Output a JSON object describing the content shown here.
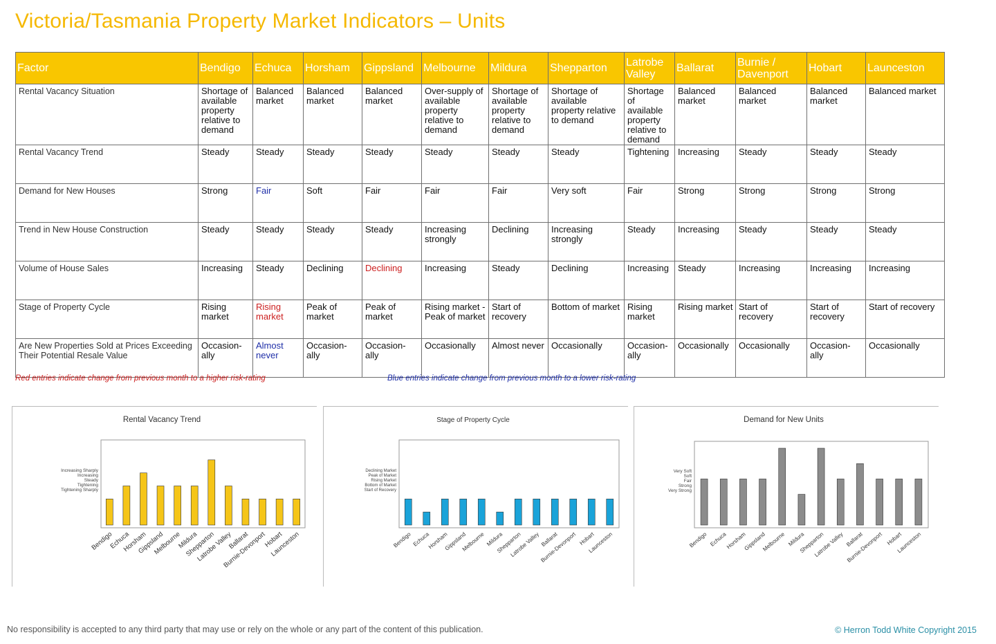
{
  "page": {
    "title": "Victoria/Tasmania Property Market Indicators – Units"
  },
  "table": {
    "header": [
      "Factor",
      "Bendigo",
      "Echuca",
      "Horsham",
      "Gippsland",
      "Melbourne",
      "Mildura",
      "Shepparton",
      "Latrobe Valley",
      "Ballarat",
      "Burnie / Davenport",
      "Hobart",
      "Launceston"
    ],
    "rows": [
      {
        "factor": "Rental Vacancy Situation",
        "cells": [
          {
            "text": "Shortage of available property relative to demand",
            "color": ""
          },
          {
            "text": "Balanced market",
            "color": ""
          },
          {
            "text": "Balanced market",
            "color": ""
          },
          {
            "text": "Balanced market",
            "color": ""
          },
          {
            "text": "Over-supply of available property relative to demand",
            "color": ""
          },
          {
            "text": "Shortage of available property relative to demand",
            "color": ""
          },
          {
            "text": "Shortage of available property relative to demand",
            "color": ""
          },
          {
            "text": "Shortage of available property relative to demand",
            "color": ""
          },
          {
            "text": "Balanced market",
            "color": ""
          },
          {
            "text": "Balanced market",
            "color": ""
          },
          {
            "text": "Balanced market",
            "color": ""
          },
          {
            "text": "Balanced market",
            "color": ""
          }
        ]
      },
      {
        "factor": "Rental Vacancy Trend",
        "cells": [
          {
            "text": "Steady",
            "color": ""
          },
          {
            "text": "Steady",
            "color": ""
          },
          {
            "text": "Steady",
            "color": ""
          },
          {
            "text": "Steady",
            "color": ""
          },
          {
            "text": "Steady",
            "color": ""
          },
          {
            "text": "Steady",
            "color": ""
          },
          {
            "text": "Steady",
            "color": ""
          },
          {
            "text": "Tightening",
            "color": ""
          },
          {
            "text": "Increasing",
            "color": ""
          },
          {
            "text": "Steady",
            "color": ""
          },
          {
            "text": "Steady",
            "color": ""
          },
          {
            "text": "Steady",
            "color": ""
          }
        ]
      },
      {
        "factor": "Demand for New Houses",
        "cells": [
          {
            "text": "Strong",
            "color": ""
          },
          {
            "text": "Fair",
            "color": "blue"
          },
          {
            "text": "Soft",
            "color": ""
          },
          {
            "text": "Fair",
            "color": ""
          },
          {
            "text": "Fair",
            "color": ""
          },
          {
            "text": "Fair",
            "color": ""
          },
          {
            "text": "Very soft",
            "color": ""
          },
          {
            "text": "Fair",
            "color": ""
          },
          {
            "text": "Strong",
            "color": ""
          },
          {
            "text": "Strong",
            "color": ""
          },
          {
            "text": "Strong",
            "color": ""
          },
          {
            "text": "Strong",
            "color": ""
          }
        ]
      },
      {
        "factor": "Trend in New House Construction",
        "cells": [
          {
            "text": "Steady",
            "color": ""
          },
          {
            "text": "Steady",
            "color": ""
          },
          {
            "text": "Steady",
            "color": ""
          },
          {
            "text": "Steady",
            "color": ""
          },
          {
            "text": "Increasing strongly",
            "color": ""
          },
          {
            "text": "Declining",
            "color": ""
          },
          {
            "text": "Increasing strongly",
            "color": ""
          },
          {
            "text": "Steady",
            "color": ""
          },
          {
            "text": "Increasing",
            "color": ""
          },
          {
            "text": "Steady",
            "color": ""
          },
          {
            "text": "Steady",
            "color": ""
          },
          {
            "text": "Steady",
            "color": ""
          }
        ]
      },
      {
        "factor": "Volume of House Sales",
        "cells": [
          {
            "text": "Increasing",
            "color": ""
          },
          {
            "text": "Steady",
            "color": ""
          },
          {
            "text": "Declining",
            "color": ""
          },
          {
            "text": "Declining",
            "color": "red"
          },
          {
            "text": "Increasing",
            "color": ""
          },
          {
            "text": "Steady",
            "color": ""
          },
          {
            "text": "Declining",
            "color": ""
          },
          {
            "text": "Increasing",
            "color": ""
          },
          {
            "text": "Steady",
            "color": ""
          },
          {
            "text": "Increasing",
            "color": ""
          },
          {
            "text": "Increasing",
            "color": ""
          },
          {
            "text": "Increasing",
            "color": ""
          }
        ]
      },
      {
        "factor": "Stage of Property Cycle",
        "cells": [
          {
            "text": "Rising market",
            "color": ""
          },
          {
            "text": "Rising market",
            "color": "red"
          },
          {
            "text": "Peak of market",
            "color": ""
          },
          {
            "text": "Peak of market",
            "color": ""
          },
          {
            "text": "Rising market - Peak of market",
            "color": ""
          },
          {
            "text": "Start of recovery",
            "color": ""
          },
          {
            "text": "Bottom of market",
            "color": ""
          },
          {
            "text": "Rising market",
            "color": ""
          },
          {
            "text": "Rising market",
            "color": ""
          },
          {
            "text": "Start of recovery",
            "color": ""
          },
          {
            "text": "Start of recovery",
            "color": ""
          },
          {
            "text": "Start of recovery",
            "color": ""
          }
        ]
      },
      {
        "factor": "Are New Properties Sold at Prices Exceeding Their Potential Resale Value",
        "cells": [
          {
            "text": "Occasion-ally",
            "color": ""
          },
          {
            "text": "Almost never",
            "color": "blue"
          },
          {
            "text": "Occasion-ally",
            "color": ""
          },
          {
            "text": "Occasion-ally",
            "color": ""
          },
          {
            "text": "Occasionally",
            "color": ""
          },
          {
            "text": "Almost never",
            "color": ""
          },
          {
            "text": "Occasionally",
            "color": ""
          },
          {
            "text": "Occasion-ally",
            "color": ""
          },
          {
            "text": "Occasionally",
            "color": ""
          },
          {
            "text": "Occasionally",
            "color": ""
          },
          {
            "text": "Occasion-ally",
            "color": ""
          },
          {
            "text": "Occasionally",
            "color": ""
          }
        ]
      }
    ]
  },
  "notes": {
    "red": "Red entries indicate change from previous month to a higher risk-rating",
    "blue": "Blue entries indicate change from previous month to a lower risk-rating"
  },
  "colors": {
    "header_bg": "#f9c600",
    "title": "#f5b800",
    "red": "#cc1f1f",
    "blue": "#1f2fa8"
  },
  "chart_data": [
    {
      "type": "bar",
      "title": "Rental Vacancy Trend",
      "bar_color": "#f5c518",
      "categories": [
        "Bendigo",
        "Echuca",
        "Horsham",
        "Gippsland",
        "Melbourne",
        "Mildura",
        "Shepparton",
        "Latrobe Valley",
        "Ballarat",
        "Burnie-Devonport",
        "Hobart",
        "Launceston"
      ],
      "y_ticks": [
        "Tightening Sharply",
        "Tightening",
        "Steady",
        "Increasing",
        "Increasing Sharply"
      ],
      "values": [
        2,
        3,
        4,
        3,
        3,
        3,
        5,
        3,
        2,
        2,
        2,
        2
      ],
      "ylim": [
        0,
        6
      ]
    },
    {
      "type": "bar",
      "title": "Stage of Property Cycle",
      "bar_color": "#1aa3d9",
      "categories": [
        "Bendigo",
        "Echuca",
        "Horsham",
        "Gippsland",
        "Melbourne",
        "Mildura",
        "Shepparton",
        "Latrobe Valley",
        "Ballarat",
        "Burnie-Devonport",
        "Hobart",
        "Launceston"
      ],
      "y_ticks": [
        "Start of Recovery",
        "Bottom of Market",
        "Rising Market",
        "Peak of Market",
        "Declining Market"
      ],
      "values": [
        2,
        1,
        2,
        2,
        2,
        1,
        2,
        2,
        2,
        2,
        2,
        2
      ],
      "ylim": [
        0,
        6
      ]
    },
    {
      "type": "bar",
      "title": "Demand for New Units",
      "bar_color": "#8c8c8c",
      "categories": [
        "Bendigo",
        "Echuca",
        "Horsham",
        "Gippsland",
        "Melbourne",
        "Mildura",
        "Shepparton",
        "Latrobe Valley",
        "Ballarat",
        "Burnie-Devonport",
        "Hobart",
        "Launceston"
      ],
      "y_ticks": [
        "Very Strong",
        "Strong",
        "Fair",
        "Soft",
        "Very Soft"
      ],
      "values": [
        3,
        3,
        3,
        3,
        5,
        2,
        5,
        3,
        4,
        3,
        3,
        3
      ],
      "ylim": [
        0,
        5
      ]
    }
  ],
  "footer": {
    "disclaimer": "No responsibility is accepted to any third party that may use or rely on the whole or any part of the content of this publication.",
    "copyright": "© Herron Todd White Copyright 2015"
  }
}
